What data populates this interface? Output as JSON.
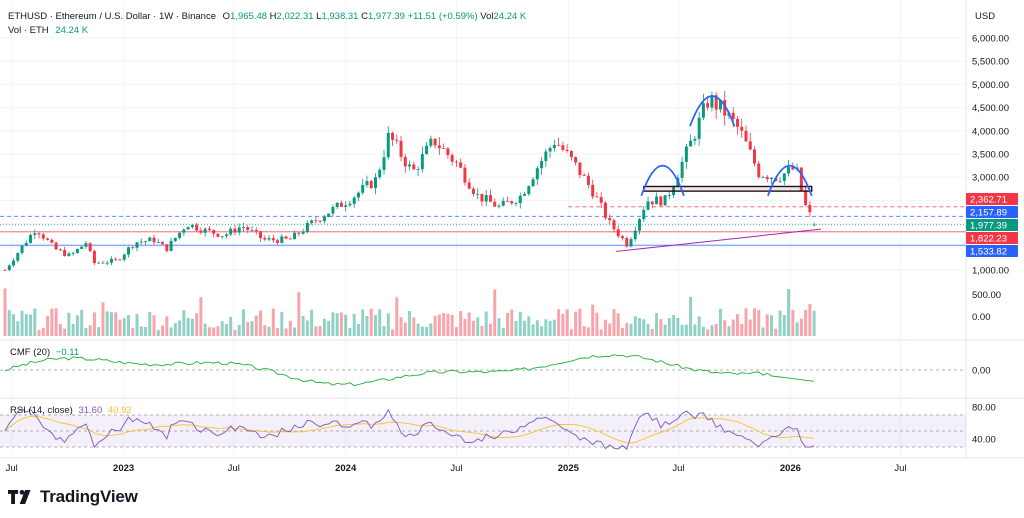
{
  "header": {
    "symbol_line": "ETHUSD · Ethereum / U.S. Dollar · 1W · Binance",
    "open_label": "O",
    "open": "1,965.48",
    "high_label": "H",
    "high": "2,022.31",
    "low_label": "L",
    "low": "1,938.31",
    "close_label": "C",
    "close": "1,977.39",
    "change": "+11.51 (+0.59%)",
    "vol_label": "Vol",
    "vol": "24.24 K",
    "vol_line_label": "Vol · ETH",
    "vol_line_value": "24.24 K"
  },
  "currency": "USD",
  "brand": "TradingView",
  "colors": {
    "up": "#089981",
    "down": "#f23645",
    "blue_tag": "#2962ff",
    "red_tag": "#f23645",
    "cmf": "#22ab36",
    "rsi": "#7e57c2",
    "rsi_ma": "#fbc02d"
  },
  "chart_data": [
    {
      "type": "candlestick",
      "title": "ETHUSD · Ethereum / U.S. Dollar · 1W · Binance",
      "ylabel": "USD",
      "y_ticks": [
        "6,000.00",
        "5,500.00",
        "5,000.00",
        "4,500.00",
        "4,000.00",
        "3,500.00",
        "3,000.00",
        "2,500.00",
        "2,000.00",
        "1,500.00",
        "1,000.00"
      ],
      "ylim": [
        1000,
        6000
      ],
      "x_ticks": [
        "Jul",
        "2023",
        "Jul",
        "2024",
        "Jul",
        "2025",
        "Jul",
        "2026",
        "Jul"
      ],
      "x_tick_dates": [
        "2022-07-01",
        "2023-01-01",
        "2023-07-01",
        "2024-01-01",
        "2024-07-01",
        "2025-01-01",
        "2025-07-01",
        "2026-01-01",
        "2026-07-01"
      ],
      "price_path": [
        [
          "2022-06-20",
          1000
        ],
        [
          "2022-07-18",
          1500
        ],
        [
          "2022-08-10",
          1900
        ],
        [
          "2022-09-10",
          1450
        ],
        [
          "2022-10-05",
          1300
        ],
        [
          "2022-11-01",
          1600
        ],
        [
          "2022-11-12",
          1150
        ],
        [
          "2022-12-20",
          1200
        ],
        [
          "2023-01-20",
          1600
        ],
        [
          "2023-02-20",
          1650
        ],
        [
          "2023-03-12",
          1450
        ],
        [
          "2023-04-15",
          2000
        ],
        [
          "2023-05-15",
          1850
        ],
        [
          "2023-06-15",
          1750
        ],
        [
          "2023-07-15",
          1950
        ],
        [
          "2023-08-20",
          1650
        ],
        [
          "2023-10-01",
          1650
        ],
        [
          "2023-11-10",
          2050
        ],
        [
          "2023-12-10",
          2300
        ],
        [
          "2024-01-10",
          2550
        ],
        [
          "2024-02-20",
          2950
        ],
        [
          "2024-03-12",
          3900
        ],
        [
          "2024-04-20",
          3100
        ],
        [
          "2024-05-25",
          3800
        ],
        [
          "2024-07-01",
          3300
        ],
        [
          "2024-08-05",
          2600
        ],
        [
          "2024-09-10",
          2350
        ],
        [
          "2024-10-15",
          2600
        ],
        [
          "2024-11-10",
          3200
        ],
        [
          "2024-12-10",
          3800
        ],
        [
          "2025-01-10",
          3300
        ],
        [
          "2025-02-10",
          2700
        ],
        [
          "2025-03-10",
          2000
        ],
        [
          "2025-04-08",
          1550
        ],
        [
          "2025-05-10",
          2500
        ],
        [
          "2025-06-10",
          2500
        ],
        [
          "2025-07-20",
          3700
        ],
        [
          "2025-08-20",
          4700
        ],
        [
          "2025-09-15",
          4400
        ],
        [
          "2025-10-10",
          4000
        ],
        [
          "2025-11-10",
          3100
        ],
        [
          "2025-12-10",
          3000
        ],
        [
          "2026-01-10",
          3200
        ],
        [
          "2026-01-25",
          2400
        ],
        [
          "2026-02-10",
          1977.39
        ]
      ],
      "volume_axis_ticks": [
        "500.00",
        "0.00"
      ],
      "horizontal_levels": [
        {
          "value": 2362.71,
          "label": "2,362.71",
          "color": "#f23645",
          "style": "dashed"
        },
        {
          "value": 2157.89,
          "label": "2,157.89",
          "color": "#2962ff",
          "style": "dashed"
        },
        {
          "value": 1977.39,
          "label": "1,977.39",
          "color": "#089981",
          "style": "dotted"
        },
        {
          "value": 1822.23,
          "label": "1,822.23",
          "color": "#f23645",
          "style": "solid"
        },
        {
          "value": 1533.82,
          "label": "1,533.82",
          "color": "#2962ff",
          "style": "solid"
        }
      ],
      "annotations": [
        "neckline-zone ~2,700-2,800",
        "head-and-shoulders arcs",
        "rising trendline from 2025 low"
      ]
    },
    {
      "type": "line",
      "name": "CMF (20)",
      "label": "CMF (20)",
      "value": "−0.11",
      "y_ticks": [
        "0.00"
      ]
    },
    {
      "type": "line",
      "name": "RSI (14, close)",
      "label": "RSI (14, close)",
      "value": "31.60",
      "ma_value": "40.92",
      "y_ticks": [
        "80.00",
        "40.00"
      ],
      "bands": [
        70,
        30
      ]
    }
  ]
}
